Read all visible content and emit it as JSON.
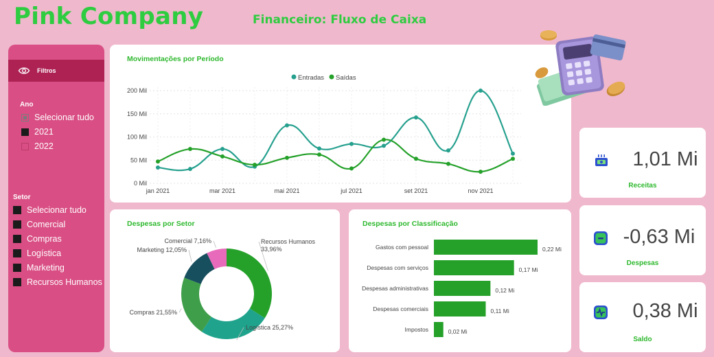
{
  "header": {
    "title": "Pink Company",
    "subtitle": "Financeiro: Fluxo de Caixa"
  },
  "filters": {
    "header_label": "Filtros",
    "ano": {
      "title": "Ano",
      "items": [
        "Selecionar tudo",
        "2021",
        "2022"
      ]
    },
    "setor": {
      "title": "Setor",
      "items": [
        "Selecionar tudo",
        "Comercial",
        "Compras",
        "Logística",
        "Marketing",
        "Recursos Humanos"
      ]
    }
  },
  "movimentacoes": {
    "title": "Movimentações por Período",
    "chart_data": {
      "type": "line",
      "x": [
        "jan 2021",
        "fev 2021",
        "mar 2021",
        "abr 2021",
        "mai 2021",
        "jun 2021",
        "jul 2021",
        "ago 2021",
        "set 2021",
        "out 2021",
        "nov 2021",
        "dez 2021"
      ],
      "x_tick_labels": [
        "jan 2021",
        "mar 2021",
        "mai 2021",
        "jul 2021",
        "set 2021",
        "nov 2021"
      ],
      "y_tick_labels": [
        "0 Mil",
        "50 Mil",
        "100 Mil",
        "150 Mil",
        "200 Mil"
      ],
      "ylim": [
        0,
        200
      ],
      "series": [
        {
          "name": "Entradas",
          "color": "#26a08e",
          "values": [
            34,
            31,
            74,
            36,
            125,
            75,
            85,
            81,
            142,
            71,
            200,
            64
          ]
        },
        {
          "name": "Saídas",
          "color": "#25a12a",
          "values": [
            47,
            74,
            58,
            40,
            55,
            62,
            32,
            94,
            53,
            42,
            25,
            53
          ]
        }
      ],
      "legend_position": "top-center"
    }
  },
  "despesas_setor": {
    "title": "Despesas por Setor",
    "chart_data": {
      "type": "pie",
      "donut": true,
      "labels": [
        "Recursos Humanos 33,96%",
        "Logística 25,27%",
        "Compras 21,55%",
        "Marketing 12,05%",
        "Comercial 7,16%"
      ],
      "values": [
        33.96,
        25.27,
        21.55,
        12.05,
        7.16
      ],
      "colors": [
        "#25a12a",
        "#20a38c",
        "#3e9e4a",
        "#184f5e",
        "#e86aba"
      ]
    }
  },
  "despesas_classificacao": {
    "title": "Despesas por Classificação",
    "chart_data": {
      "type": "bar",
      "orientation": "horizontal",
      "categories": [
        "Gastos com pessoal",
        "Despesas com serviços",
        "Despesas administrativas",
        "Despesas comerciais",
        "Impostos"
      ],
      "values": [
        0.22,
        0.17,
        0.12,
        0.11,
        0.02
      ],
      "value_labels": [
        "0,22 Mi",
        "0,17 Mi",
        "0,12 Mi",
        "0,11 Mi",
        "0,02 Mi"
      ],
      "color": "#25a12a"
    }
  },
  "kpis": {
    "receitas": {
      "value": "1,01 Mi",
      "label": "Receitas",
      "icon": "money-icon"
    },
    "despesas": {
      "value": "-0,63 Mi",
      "label": "Despesas",
      "icon": "minus-icon"
    },
    "saldo": {
      "value": "0,38 Mi",
      "label": "Saldo",
      "icon": "pulse-icon"
    }
  }
}
